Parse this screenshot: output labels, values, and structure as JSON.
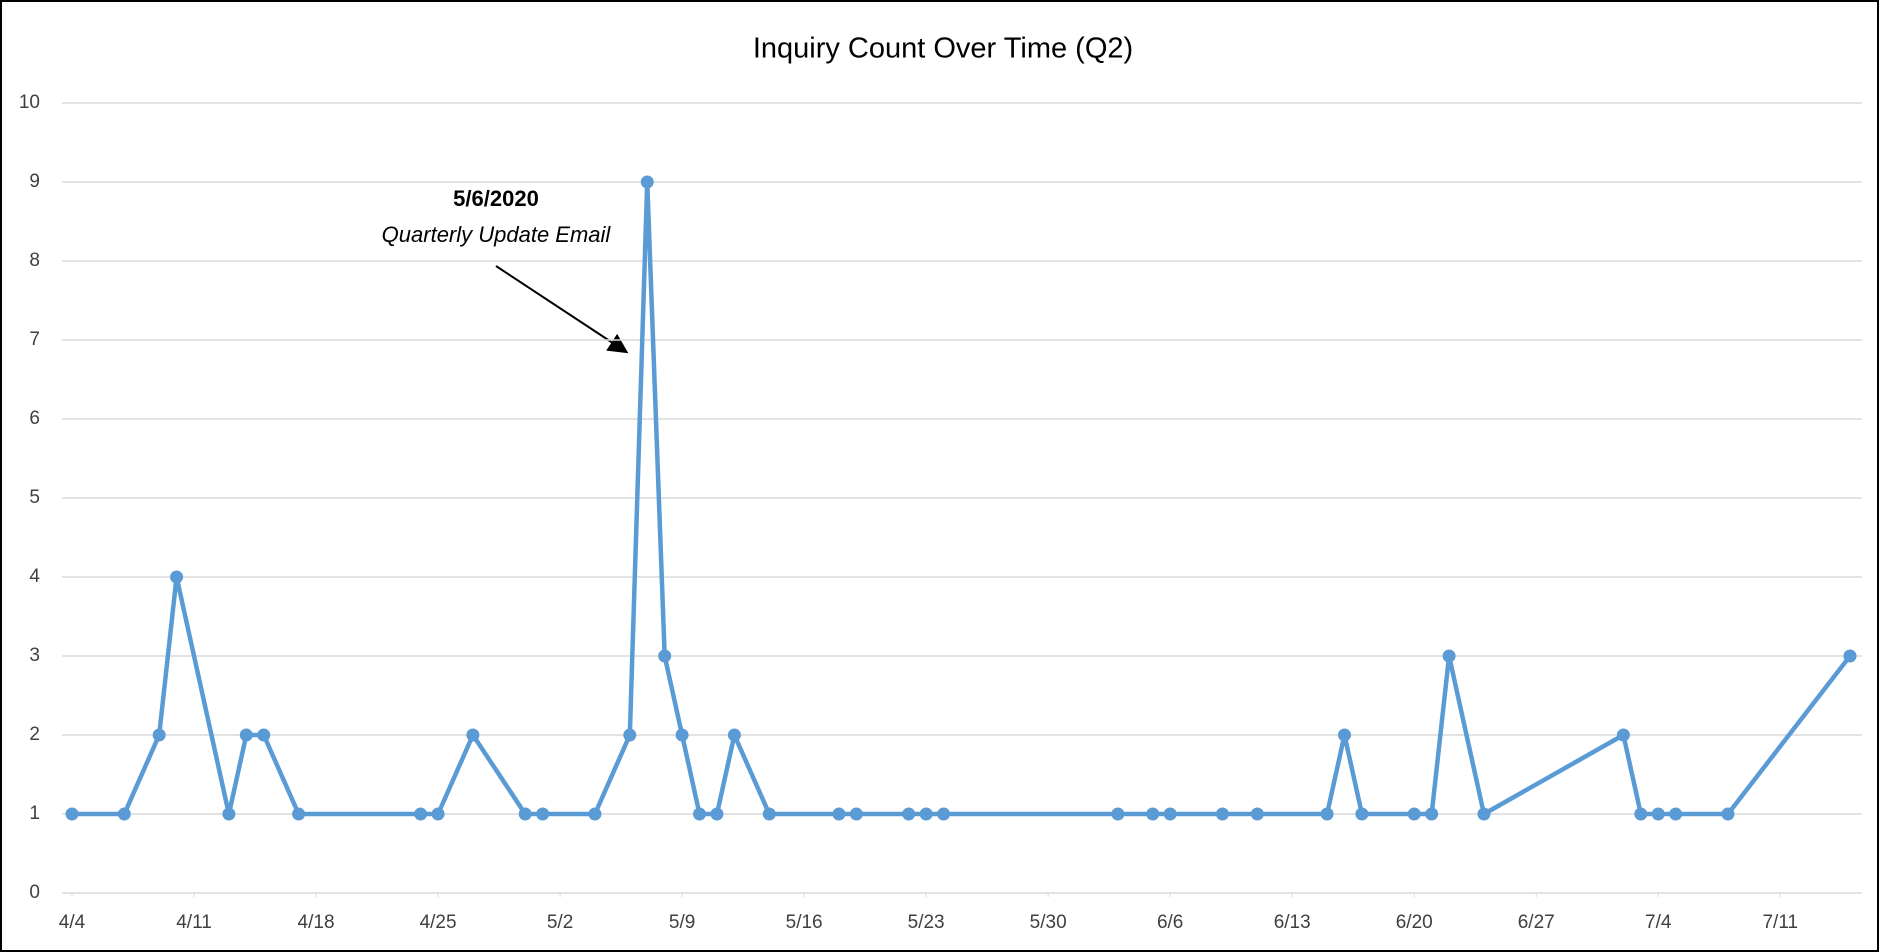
{
  "chart_data": {
    "type": "line",
    "title": "Inquiry Count Over Time (Q2)",
    "x": [
      "4/4",
      "4/7",
      "4/9",
      "4/10",
      "4/13",
      "4/14",
      "4/15",
      "4/17",
      "4/24",
      "4/25",
      "4/27",
      "4/30",
      "5/1",
      "5/4",
      "5/6",
      "5/7",
      "5/8",
      "5/9",
      "5/10",
      "5/11",
      "5/12",
      "5/14",
      "5/18",
      "5/19",
      "5/22",
      "5/23",
      "5/24",
      "6/3",
      "6/5",
      "6/6",
      "6/9",
      "6/11",
      "6/15",
      "6/16",
      "6/17",
      "6/20",
      "6/21",
      "6/22",
      "6/24",
      "7/2",
      "7/3",
      "7/4",
      "7/5",
      "7/8",
      "7/15"
    ],
    "series": [
      {
        "name": "Inquiry Count",
        "color": "#5b9bd5",
        "values": [
          1,
          1,
          2,
          4,
          1,
          2,
          2,
          1,
          1,
          1,
          2,
          1,
          1,
          1,
          2,
          9,
          3,
          2,
          1,
          1,
          2,
          1,
          1,
          1,
          1,
          1,
          1,
          1,
          1,
          1,
          1,
          1,
          1,
          2,
          1,
          1,
          1,
          3,
          1,
          2,
          1,
          1,
          1,
          1,
          3
        ]
      }
    ],
    "xlim": [
      "4/4",
      "7/15"
    ],
    "xticks": [
      "4/4",
      "4/11",
      "4/18",
      "4/25",
      "5/2",
      "5/9",
      "5/16",
      "5/23",
      "5/30",
      "6/6",
      "6/13",
      "6/20",
      "6/27",
      "7/4",
      "7/11"
    ],
    "ylim": [
      0,
      10
    ],
    "yticks": [
      0,
      1,
      2,
      3,
      4,
      5,
      6,
      7,
      8,
      9,
      10
    ],
    "grid": true,
    "markers": true,
    "annotations": [
      {
        "title": "5/6/2020",
        "text": "Quarterly Update Email"
      }
    ]
  }
}
